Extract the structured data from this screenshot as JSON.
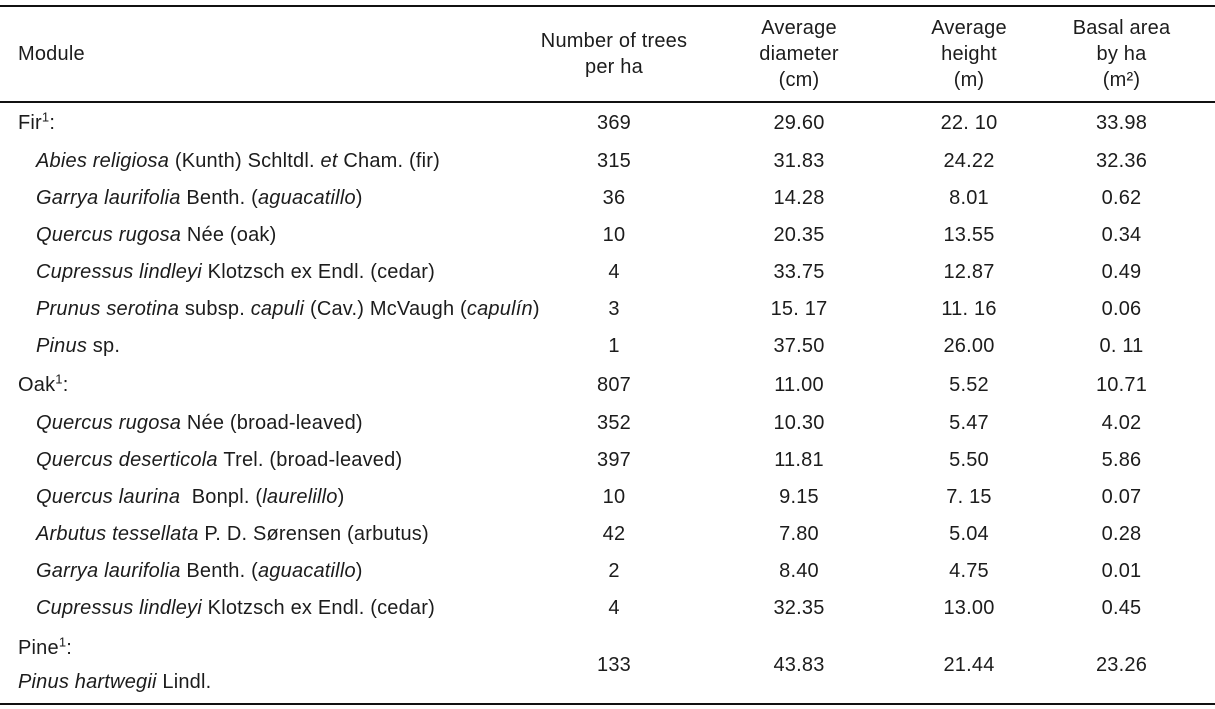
{
  "table": {
    "header": {
      "columns": [
        {
          "lines": [
            "Module"
          ]
        },
        {
          "lines": [
            "Number of trees",
            "per ha"
          ]
        },
        {
          "lines": [
            "Average",
            "diameter",
            "(cm)"
          ]
        },
        {
          "lines": [
            "Average",
            "height",
            "(m)"
          ]
        },
        {
          "lines": [
            "Basal area",
            "by ha",
            "(m²)"
          ]
        }
      ]
    },
    "rows": [
      {
        "kind": "group",
        "segments": [
          {
            "t": "Fir"
          },
          {
            "t": "1",
            "sup": true
          },
          {
            "t": ":"
          }
        ],
        "values": [
          "369",
          "29.60",
          "22. 10",
          "33.98"
        ]
      },
      {
        "kind": "species",
        "segments": [
          {
            "t": "Abies religiosa ",
            "i": true
          },
          {
            "t": "(Kunth) Schltdl. "
          },
          {
            "t": "et",
            "i": true
          },
          {
            "t": " Cham. (fir)"
          }
        ],
        "values": [
          "315",
          "31.83",
          "24.22",
          "32.36"
        ]
      },
      {
        "kind": "species",
        "segments": [
          {
            "t": "Garrya laurifolia ",
            "i": true
          },
          {
            "t": "Benth. ("
          },
          {
            "t": "aguacatillo",
            "i": true
          },
          {
            "t": ")"
          }
        ],
        "values": [
          "36",
          "14.28",
          "8.01",
          "0.62"
        ]
      },
      {
        "kind": "species",
        "segments": [
          {
            "t": "Quercus rugosa ",
            "i": true
          },
          {
            "t": "Née (oak)"
          }
        ],
        "values": [
          "10",
          "20.35",
          "13.55",
          "0.34"
        ]
      },
      {
        "kind": "species",
        "segments": [
          {
            "t": "Cupressus lindleyi ",
            "i": true
          },
          {
            "t": "Klotzsch ex Endl. (cedar)"
          }
        ],
        "values": [
          "4",
          "33.75",
          "12.87",
          "0.49"
        ]
      },
      {
        "kind": "species",
        "segments": [
          {
            "t": "Prunus serotina ",
            "i": true
          },
          {
            "t": "subsp. "
          },
          {
            "t": "capuli ",
            "i": true
          },
          {
            "t": "(Cav.) McVaugh ("
          },
          {
            "t": "capulín",
            "i": true
          },
          {
            "t": ")"
          }
        ],
        "values": [
          "3",
          "15. 17",
          "11. 16",
          "0.06"
        ]
      },
      {
        "kind": "species",
        "segments": [
          {
            "t": "Pinus ",
            "i": true
          },
          {
            "t": "sp."
          }
        ],
        "values": [
          "1",
          "37.50",
          "26.00",
          "0. 11"
        ]
      },
      {
        "kind": "group",
        "segments": [
          {
            "t": "Oak"
          },
          {
            "t": "1",
            "sup": true
          },
          {
            "t": ":"
          }
        ],
        "values": [
          "807",
          "11.00",
          "5.52",
          "10.71"
        ]
      },
      {
        "kind": "species",
        "segments": [
          {
            "t": "Quercus rugosa ",
            "i": true
          },
          {
            "t": "Née (broad-leaved)"
          }
        ],
        "values": [
          "352",
          "10.30",
          "5.47",
          "4.02"
        ]
      },
      {
        "kind": "species",
        "segments": [
          {
            "t": "Quercus deserticola ",
            "i": true
          },
          {
            "t": "Trel. (broad-leaved)"
          }
        ],
        "values": [
          "397",
          "11.81",
          "5.50",
          "5.86"
        ]
      },
      {
        "kind": "species",
        "segments": [
          {
            "t": "Quercus laurina ",
            "i": true
          },
          {
            "t": " Bonpl. ("
          },
          {
            "t": "laurelillo",
            "i": true
          },
          {
            "t": ")"
          }
        ],
        "values": [
          "10",
          "9.15",
          "7. 15",
          "0.07"
        ]
      },
      {
        "kind": "species",
        "segments": [
          {
            "t": "Arbutus tessellata ",
            "i": true
          },
          {
            "t": "P. D. Sørensen (arbutus)"
          }
        ],
        "values": [
          "42",
          "7.80",
          "5.04",
          "0.28"
        ]
      },
      {
        "kind": "species",
        "segments": [
          {
            "t": "Garrya laurifolia ",
            "i": true
          },
          {
            "t": "Benth. ("
          },
          {
            "t": "aguacatillo",
            "i": true
          },
          {
            "t": ")"
          }
        ],
        "values": [
          "2",
          "8.40",
          "4.75",
          "0.01"
        ]
      },
      {
        "kind": "species",
        "segments": [
          {
            "t": "Cupressus lindleyi ",
            "i": true
          },
          {
            "t": "Klotzsch ex Endl. (cedar)"
          }
        ],
        "values": [
          "4",
          "32.35",
          "13.00",
          "0.45"
        ]
      },
      {
        "kind": "group2",
        "lines": [
          [
            {
              "t": "Pine"
            },
            {
              "t": "1",
              "sup": true
            },
            {
              "t": ":"
            }
          ],
          [
            {
              "t": "Pinus hartwegii ",
              "i": true
            },
            {
              "t": "Lindl."
            }
          ]
        ],
        "values": [
          "133",
          "43.83",
          "21.44",
          "23.26"
        ]
      }
    ],
    "text_color": "#1c1c1c",
    "rule_color": "#111111"
  }
}
